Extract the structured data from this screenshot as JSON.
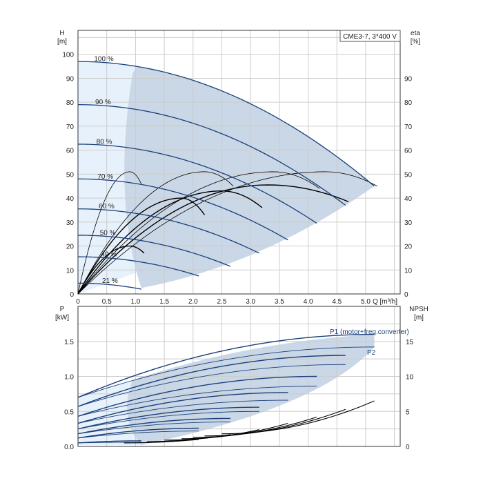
{
  "chart_data": [
    {
      "type": "line",
      "legend_label": "CME3-7, 3*400 V",
      "y_label_left": "H",
      "y_unit_left": "[m]",
      "y_label_right": "eta",
      "y_unit_right": "[%]",
      "x_label": "Q [m³/h]",
      "xlim": [
        0,
        5.6
      ],
      "ylim": [
        0,
        110
      ],
      "ylim_right": [
        0,
        110
      ],
      "x_ticks": [
        "0",
        "0.5",
        "1.0",
        "1.5",
        "2.0",
        "2.5",
        "3.0",
        "3.5",
        "4.0",
        "4.5",
        "5.0"
      ],
      "y_ticks_left": [
        "0",
        "10",
        "20",
        "30",
        "40",
        "50",
        "60",
        "70",
        "80",
        "90",
        "100"
      ],
      "y_ticks_right": [
        "0",
        "10",
        "20",
        "30",
        "40",
        "50",
        "60",
        "70",
        "80",
        "90"
      ],
      "grid": true,
      "colors": {
        "curve": "#1a3f7a",
        "eff": "#000000",
        "band": "#c9d7e6",
        "band_light": "#e6f1fb"
      },
      "speed_curves": [
        {
          "name": "100 %",
          "label": "100 %",
          "shutoff": 97,
          "qmax": 5.15,
          "hend": 45
        },
        {
          "name": "90 %",
          "label": "90 %",
          "shutoff": 79,
          "qmax": 4.65,
          "hend": 37
        },
        {
          "name": "80 %",
          "label": "80 %",
          "shutoff": 62.5,
          "qmax": 4.15,
          "hend": 29.5
        },
        {
          "name": "70 %",
          "label": "70 %",
          "shutoff": 48,
          "qmax": 3.65,
          "hend": 22.5
        },
        {
          "name": "60 %",
          "label": "60 %",
          "shutoff": 35.5,
          "qmax": 3.15,
          "hend": 17
        },
        {
          "name": "50 %",
          "label": "50 %",
          "shutoff": 24.5,
          "qmax": 2.65,
          "hend": 11.5
        },
        {
          "name": "40 %",
          "label": "40 %",
          "shutoff": 15.5,
          "qmax": 2.1,
          "hend": 7.5
        },
        {
          "name": "21 %",
          "label": "21 %",
          "shutoff": 4.5,
          "qmax": 1.1,
          "hend": 2
        }
      ],
      "efficiency_curves": [
        {
          "qpeak": 0.9,
          "peak": 51,
          "qend": 1.1,
          "eend": 46
        },
        {
          "qpeak": 2.2,
          "peak": 51,
          "qend": 2.7,
          "eend": 45
        },
        {
          "qpeak": 3.4,
          "peak": 51,
          "qend": 4.2,
          "eend": 44
        },
        {
          "qpeak": 4.3,
          "peak": 51,
          "qend": 5.2,
          "eend": 45
        },
        {
          "qpeak": 3.3,
          "peak": 45.5,
          "qend": 4.7,
          "eend": 38.5
        },
        {
          "qpeak": 2.5,
          "peak": 43,
          "qend": 3.2,
          "eend": 36
        },
        {
          "qpeak": 1.8,
          "peak": 40,
          "qend": 2.2,
          "eend": 33
        },
        {
          "qpeak": 0.9,
          "peak": 20,
          "qend": 1.15,
          "eend": 17
        }
      ]
    },
    {
      "type": "line",
      "y_label_left": "P",
      "y_unit_left": "[kW]",
      "y_label_right": "NPSH",
      "y_unit_right": "[m]",
      "xlim": [
        0,
        5.6
      ],
      "ylim": [
        0,
        2.0
      ],
      "ylim_right": [
        0,
        20
      ],
      "y_ticks_left": [
        "0.0",
        "0.5",
        "1.0",
        "1.5"
      ],
      "y_ticks_right": [
        "0",
        "5",
        "10",
        "15"
      ],
      "grid": true,
      "label_p1": "P1 (motor+freq.converter)",
      "label_p2": "P2",
      "power_curves": [
        {
          "p0": 0.7,
          "p1end": 1.6,
          "p2end": 1.42,
          "qmax": 5.15
        },
        {
          "p0": 0.57,
          "p1end": 1.3,
          "p2end": 1.17,
          "qmax": 4.65
        },
        {
          "p0": 0.43,
          "p1end": 1.0,
          "p2end": 0.86,
          "qmax": 4.15
        },
        {
          "p0": 0.33,
          "p1end": 0.77,
          "p2end": 0.66,
          "qmax": 3.65
        },
        {
          "p0": 0.25,
          "p1end": 0.56,
          "p2end": 0.5,
          "qmax": 3.15
        },
        {
          "p0": 0.18,
          "p1end": 0.4,
          "p2end": 0.35,
          "qmax": 2.65
        },
        {
          "p0": 0.12,
          "p1end": 0.26,
          "p2end": 0.22,
          "qmax": 2.1
        },
        {
          "p0": 0.05,
          "p1end": 0.08,
          "p2end": 0.06,
          "qmax": 1.1
        }
      ],
      "npsh_curves": [
        {
          "qstart": 2.5,
          "qend": 5.15,
          "nstart": 1.8,
          "nend": 6.5
        },
        {
          "qstart": 2.2,
          "qend": 4.65,
          "nstart": 1.5,
          "nend": 5.3
        },
        {
          "qstart": 2.0,
          "qend": 4.15,
          "nstart": 1.3,
          "nend": 4.2
        },
        {
          "qstart": 1.8,
          "qend": 3.65,
          "nstart": 1.1,
          "nend": 3.3
        },
        {
          "qstart": 1.5,
          "qend": 3.15,
          "nstart": 0.9,
          "nend": 2.4
        },
        {
          "qstart": 1.2,
          "qend": 2.65,
          "nstart": 0.7,
          "nend": 1.7
        },
        {
          "qstart": 0.8,
          "qend": 2.1,
          "nstart": 0.5,
          "nend": 1.0
        }
      ]
    }
  ]
}
